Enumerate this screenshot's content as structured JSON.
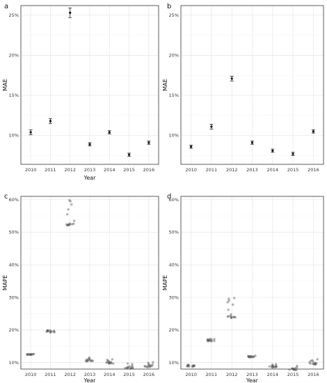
{
  "chart_data": [
    {
      "panel": "a",
      "type": "scatter",
      "categories": [
        "2010",
        "2011",
        "2012",
        "2013",
        "2014",
        "2015",
        "2016"
      ],
      "ylabel": "MAE",
      "xlabel": "Year",
      "ylim": [
        0.064,
        0.262
      ],
      "yticks": [
        0.1,
        0.15,
        0.2,
        0.25
      ],
      "yticklabels": [
        "10%",
        "15%",
        "20%",
        "25%"
      ],
      "grid": true,
      "series": [
        {
          "kind": "mean_se",
          "values": [
            0.104,
            0.118,
            0.253,
            0.089,
            0.104,
            0.076,
            0.091
          ],
          "err": [
            0.003,
            0.003,
            0.006,
            0.002,
            0.002,
            0.002,
            0.002
          ]
        }
      ]
    },
    {
      "panel": "b",
      "type": "scatter",
      "categories": [
        "2010",
        "2011",
        "2012",
        "2013",
        "2014",
        "2015",
        "2016"
      ],
      "ylabel": "MAE",
      "xlabel": "",
      "ylim": [
        0.064,
        0.262
      ],
      "yticks": [
        0.1,
        0.15,
        0.2,
        0.25
      ],
      "yticklabels": [
        "10%",
        "15%",
        "20%",
        "25%"
      ],
      "grid": true,
      "series": [
        {
          "kind": "mean_se",
          "values": [
            0.086,
            0.111,
            0.171,
            0.091,
            0.081,
            0.077,
            0.105
          ],
          "err": [
            0.002,
            0.003,
            0.003,
            0.002,
            0.002,
            0.002,
            0.002
          ]
        }
      ]
    },
    {
      "panel": "c",
      "type": "scatter",
      "categories": [
        "2010",
        "2011",
        "2012",
        "2013",
        "2014",
        "2015",
        "2016"
      ],
      "ylabel": "MAPE",
      "xlabel": "Year",
      "ylim": [
        0.08,
        0.61
      ],
      "yticks": [
        0.1,
        0.2,
        0.3,
        0.4,
        0.5,
        0.6
      ],
      "yticklabels": [
        "10%",
        "20%",
        "30%",
        "40%",
        "50%",
        "60%"
      ],
      "grid": true,
      "series": [
        {
          "kind": "jitter",
          "values": [
            [
              0.125,
              0.125,
              0.124,
              0.126,
              0.125,
              0.124,
              0.125,
              0.126,
              0.125,
              0.124,
              0.125,
              0.126,
              0.125,
              0.125
            ],
            [
              0.192,
              0.197,
              0.195,
              0.199,
              0.196,
              0.194,
              0.198,
              0.195,
              0.197,
              0.193,
              0.196,
              0.199,
              0.195,
              0.197
            ],
            [
              0.598,
              0.595,
              0.585,
              0.57,
              0.555,
              0.535,
              0.527,
              0.522,
              0.524,
              0.523,
              0.521,
              0.525,
              0.523,
              0.522,
              0.524,
              0.526
            ],
            [
              0.108,
              0.105,
              0.11,
              0.104,
              0.107,
              0.113,
              0.106,
              0.104,
              0.109,
              0.105,
              0.115,
              0.106,
              0.104,
              0.108
            ],
            [
              0.099,
              0.102,
              0.097,
              0.106,
              0.1,
              0.098,
              0.103,
              0.11,
              0.099,
              0.097,
              0.101,
              0.108,
              0.098,
              0.1
            ],
            [
              0.085,
              0.083,
              0.09,
              0.082,
              0.086,
              0.095,
              0.084,
              0.081,
              0.088,
              0.083,
              0.097,
              0.084,
              0.082,
              0.086
            ],
            [
              0.088,
              0.091,
              0.087,
              0.094,
              0.089,
              0.086,
              0.092,
              0.099,
              0.088,
              0.101,
              0.09,
              0.089,
              0.087,
              0.095
            ]
          ]
        }
      ]
    },
    {
      "panel": "d",
      "type": "scatter",
      "categories": [
        "2010",
        "2011",
        "2012",
        "2013",
        "2014",
        "2015",
        "2016"
      ],
      "ylabel": "MAPE",
      "xlabel": "Year",
      "ylim": [
        0.08,
        0.61
      ],
      "yticks": [
        0.1,
        0.2,
        0.3,
        0.4,
        0.5,
        0.6
      ],
      "yticklabels": [
        "10%",
        "20%",
        "30%",
        "40%",
        "50%",
        "60%"
      ],
      "grid": true,
      "series": [
        {
          "kind": "jitter",
          "values": [
            [
              0.092,
              0.089,
              0.091,
              0.088,
              0.09,
              0.093,
              0.089,
              0.091,
              0.087,
              0.09,
              0.092,
              0.089,
              0.09,
              0.088
            ],
            [
              0.165,
              0.168,
              0.17,
              0.166,
              0.172,
              0.169,
              0.167,
              0.171,
              0.168,
              0.165,
              0.17,
              0.173,
              0.167,
              0.169
            ],
            [
              0.298,
              0.296,
              0.29,
              0.285,
              0.278,
              0.262,
              0.248,
              0.242,
              0.24,
              0.238,
              0.241,
              0.239,
              0.237,
              0.24,
              0.243,
              0.239
            ],
            [
              0.119,
              0.117,
              0.12,
              0.116,
              0.118,
              0.121,
              0.117,
              0.119,
              0.116,
              0.118,
              0.12,
              0.117,
              0.119,
              0.118
            ],
            [
              0.089,
              0.087,
              0.092,
              0.086,
              0.088,
              0.095,
              0.087,
              0.085,
              0.09,
              0.086,
              0.093,
              0.088,
              0.086,
              0.089
            ],
            [
              0.081,
              0.079,
              0.083,
              0.078,
              0.08,
              0.09,
              0.079,
              0.077,
              0.082,
              0.078,
              0.085,
              0.08,
              0.078,
              0.081
            ],
            [
              0.095,
              0.099,
              0.096,
              0.103,
              0.097,
              0.094,
              0.1,
              0.107,
              0.096,
              0.11,
              0.098,
              0.097,
              0.095,
              0.105
            ]
          ]
        }
      ]
    }
  ]
}
